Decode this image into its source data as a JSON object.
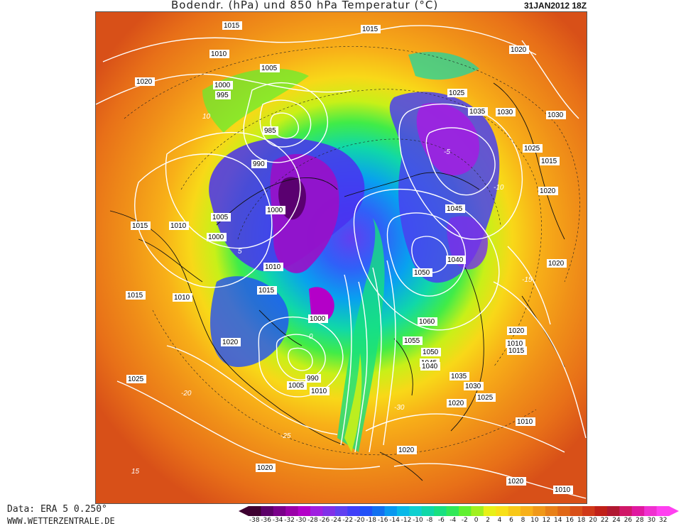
{
  "header": {
    "title": "Bodendr. (hPa) und 850 hPa Temperatur (°C)",
    "timestamp": "31JAN2012 18Z"
  },
  "footer": {
    "data_source": "Data: ERA 5 0.250°",
    "website": "WWW.WETTERZENTRALE.DE"
  },
  "legend": {
    "ticks": [
      "-38",
      "-36",
      "-34",
      "-32",
      "-30",
      "-28",
      "-26",
      "-24",
      "-22",
      "-20",
      "-18",
      "-16",
      "-14",
      "-12",
      "-10",
      "-8",
      "-6",
      "-4",
      "-2",
      "0",
      "2",
      "4",
      "6",
      "8",
      "10",
      "12",
      "14",
      "16",
      "18",
      "20",
      "22",
      "24",
      "26",
      "28",
      "30",
      "32"
    ],
    "colors": [
      "#3d0030",
      "#5c0068",
      "#7a008a",
      "#9a00a8",
      "#b400c8",
      "#a020e0",
      "#8030e8",
      "#6040f0",
      "#4040f8",
      "#2050f8",
      "#1070f0",
      "#0898f0",
      "#08b8e8",
      "#10d0d0",
      "#10d8a8",
      "#18e080",
      "#30e858",
      "#60f030",
      "#a0f020",
      "#e8f018",
      "#f8e018",
      "#f8c818",
      "#f8b018",
      "#f09818",
      "#e88018",
      "#e06818",
      "#d85018",
      "#d03818",
      "#c02018",
      "#b01830",
      "#d01868",
      "#e018a0",
      "#f030d0",
      "#ff40f0"
    ],
    "low_end_color": "#3d0030",
    "high_end_color": "#ff40f0"
  },
  "pressure_labels": [
    "1015",
    "1010",
    "1020",
    "1005",
    "1000",
    "995",
    "985",
    "990",
    "1000",
    "1005",
    "1010",
    "1015",
    "1020",
    "1010",
    "1015",
    "1000",
    "1025",
    "1030",
    "1035",
    "1040",
    "1045",
    "1050",
    "1060",
    "1055",
    "1050",
    "1045",
    "1040",
    "1035",
    "1030",
    "1025",
    "1020",
    "1015",
    "1010",
    "1020",
    "1015",
    "1010",
    "1005",
    "1000",
    "990",
    "1010",
    "1020",
    "1015",
    "1020",
    "1020",
    "1010",
    "1030",
    "1025",
    "1020",
    "1015",
    "1020",
    "1025",
    "1020",
    "1010"
  ],
  "contour_minor_labels": [
    "10",
    "5",
    "0",
    "-5",
    "-10",
    "-15",
    "-20",
    "-25",
    "-30",
    "15"
  ],
  "colors": {
    "warm_rim": "#e86818",
    "land_line": "#111111",
    "isobar": "#ffffff"
  }
}
